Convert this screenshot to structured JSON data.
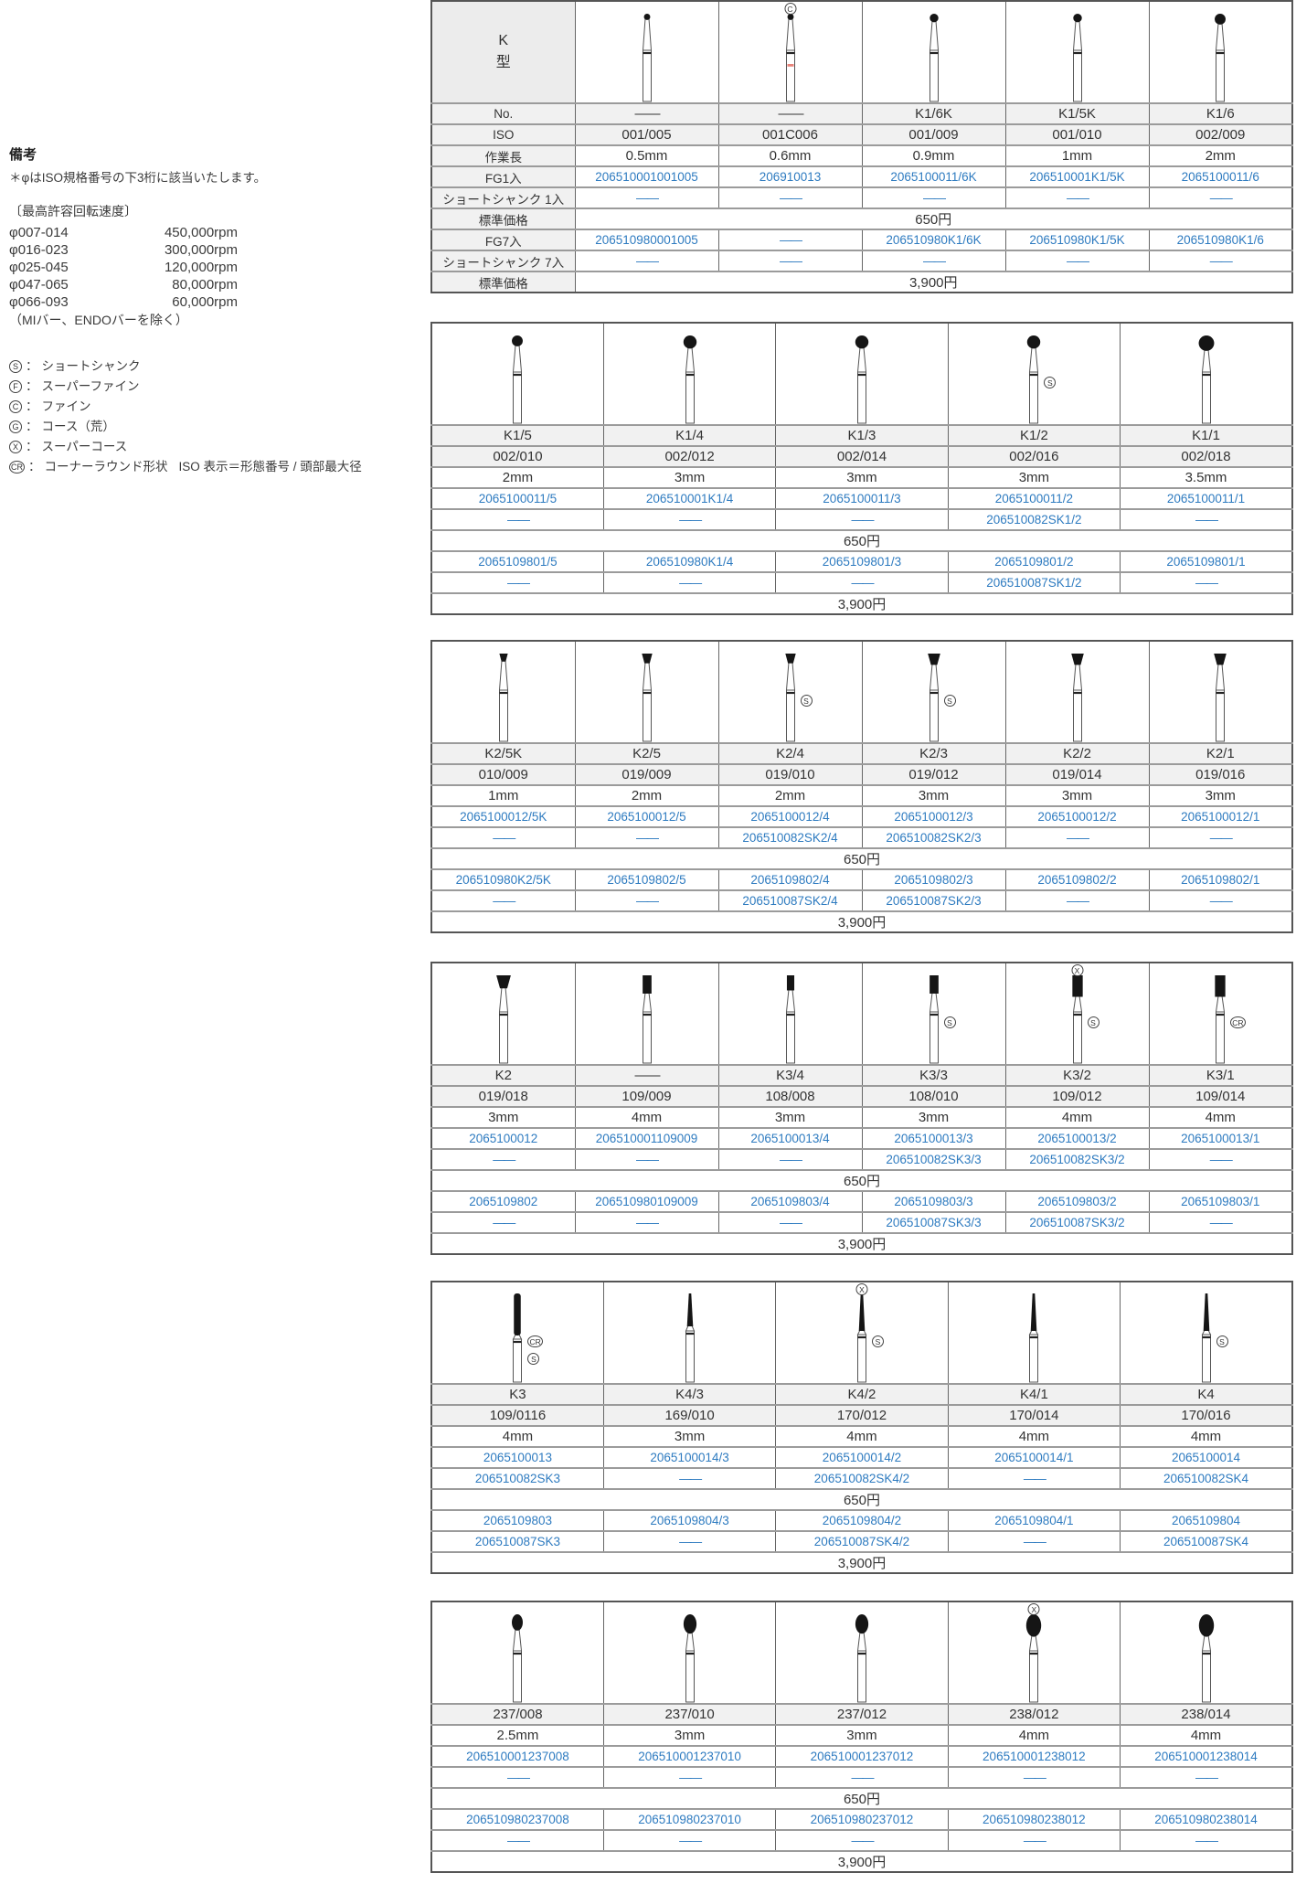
{
  "notes": {
    "heading": "備考",
    "iso_note": "＊φはISO規格番号の下3桁に該当いたします。",
    "speed_title": "〔最高許容回転速度〕",
    "speeds": [
      {
        "range": "φ007-014",
        "rpm": "450,000rpm"
      },
      {
        "range": "φ016-023",
        "rpm": "300,000rpm"
      },
      {
        "range": "φ025-045",
        "rpm": "120,000rpm"
      },
      {
        "range": "φ047-065",
        "rpm": "80,000rpm"
      },
      {
        "range": "φ066-093",
        "rpm": "60,000rpm"
      }
    ],
    "speed_exclusion": "（MIバー、ENDOバーを除く）",
    "legend": [
      {
        "sym": "S",
        "label": "ショートシャンク",
        "note": ""
      },
      {
        "sym": "F",
        "label": "スーパーファイン",
        "note": ""
      },
      {
        "sym": "C",
        "label": "ファイン",
        "note": ""
      },
      {
        "sym": "G",
        "label": "コース（荒）",
        "note": ""
      },
      {
        "sym": "X",
        "label": "スーパーコース",
        "note": ""
      },
      {
        "sym": "CR",
        "label": "コーナーラウンド形状",
        "note": "ISO 表示＝形態番号 / 頭部最大径"
      }
    ]
  },
  "row_labels": {
    "type_header_line1": "K",
    "type_header_line2": "型",
    "no": "No.",
    "iso": "ISO",
    "length": "作業長",
    "fg1": "FG1入",
    "ss1": "ショートシャンク 1入",
    "price": "標準価格",
    "fg7": "FG7入",
    "ss7": "ショートシャンク 7入"
  },
  "colors": {
    "link_blue": "#2e7bc0",
    "header_gray": "#f1f1f1",
    "border_dark": "#555555",
    "red_band": "#e8837a"
  },
  "tables": [
    {
      "name": "k-table-1",
      "has_label_col": true,
      "has_no_row": true,
      "price1": "650円",
      "price7": "3,900円",
      "columns": [
        {
          "no": "——",
          "iso": "001/005",
          "len": "0.5mm",
          "fg1": "206510001001005",
          "ss1": "——",
          "fg7": "206510980001005",
          "ss7": "——",
          "bur": {
            "shape": "ball",
            "size": 1
          }
        },
        {
          "no": "——",
          "iso": "001C006",
          "len": "0.6mm",
          "fg1": "206910013",
          "ss1": "——",
          "fg7": "——",
          "ss7": "——",
          "bur": {
            "shape": "ball",
            "size": 1,
            "above": "C",
            "red_band": true
          }
        },
        {
          "no": "K1/6K",
          "iso": "001/009",
          "len": "0.9mm",
          "fg1": "2065100011/6K",
          "ss1": "——",
          "fg7": "206510980K1/6K",
          "ss7": "——",
          "bur": {
            "shape": "ball",
            "size": 2
          }
        },
        {
          "no": "K1/5K",
          "iso": "001/010",
          "len": "1mm",
          "fg1": "206510001K1/5K",
          "ss1": "——",
          "fg7": "206510980K1/5K",
          "ss7": "——",
          "bur": {
            "shape": "ball",
            "size": 2
          }
        },
        {
          "no": "K1/6",
          "iso": "002/009",
          "len": "2mm",
          "fg1": "2065100011/6",
          "ss1": "——",
          "fg7": "206510980K1/6",
          "ss7": "——",
          "bur": {
            "shape": "ball",
            "size": 3
          }
        }
      ]
    },
    {
      "name": "k-table-2",
      "has_label_col": false,
      "has_no_row": true,
      "price1": "650円",
      "price7": "3,900円",
      "columns": [
        {
          "no": "K1/5",
          "iso": "002/010",
          "len": "2mm",
          "fg1": "2065100011/5",
          "ss1": "——",
          "fg7": "2065109801/5",
          "ss7": "——",
          "bur": {
            "shape": "ball",
            "size": 3
          }
        },
        {
          "no": "K1/4",
          "iso": "002/012",
          "len": "3mm",
          "fg1": "206510001K1/4",
          "ss1": "——",
          "fg7": "206510980K1/4",
          "ss7": "——",
          "bur": {
            "shape": "ball",
            "size": 4
          }
        },
        {
          "no": "K1/3",
          "iso": "002/014",
          "len": "3mm",
          "fg1": "2065100011/3",
          "ss1": "——",
          "fg7": "2065109801/3",
          "ss7": "——",
          "bur": {
            "shape": "ball",
            "size": 4
          }
        },
        {
          "no": "K1/2",
          "iso": "002/016",
          "len": "3mm",
          "fg1": "2065100011/2",
          "ss1": "206510082SK1/2",
          "fg7": "2065109801/2",
          "ss7": "206510087SK1/2",
          "bur": {
            "shape": "ball",
            "size": 4,
            "side": [
              "S"
            ]
          }
        },
        {
          "no": "K1/1",
          "iso": "002/018",
          "len": "3.5mm",
          "fg1": "2065100011/1",
          "ss1": "——",
          "fg7": "2065109801/1",
          "ss7": "——",
          "bur": {
            "shape": "ball",
            "size": 5
          }
        }
      ]
    },
    {
      "name": "k-table-3",
      "has_label_col": false,
      "has_no_row": true,
      "price1": "650円",
      "price7": "3,900円",
      "columns": [
        {
          "no": "K2/5K",
          "iso": "010/009",
          "len": "1mm",
          "fg1": "2065100012/5K",
          "ss1": "——",
          "fg7": "206510980K2/5K",
          "ss7": "——",
          "bur": {
            "shape": "invcone",
            "size": 1
          }
        },
        {
          "no": "K2/5",
          "iso": "019/009",
          "len": "2mm",
          "fg1": "2065100012/5",
          "ss1": "——",
          "fg7": "2065109802/5",
          "ss7": "——",
          "bur": {
            "shape": "invcone",
            "size": 2
          }
        },
        {
          "no": "K2/4",
          "iso": "019/010",
          "len": "2mm",
          "fg1": "2065100012/4",
          "ss1": "206510082SK2/4",
          "fg7": "2065109802/4",
          "ss7": "206510087SK2/4",
          "bur": {
            "shape": "invcone",
            "size": 2,
            "side": [
              "S"
            ]
          }
        },
        {
          "no": "K2/3",
          "iso": "019/012",
          "len": "3mm",
          "fg1": "2065100012/3",
          "ss1": "206510082SK2/3",
          "fg7": "2065109802/3",
          "ss7": "206510087SK2/3",
          "bur": {
            "shape": "invcone",
            "size": 3,
            "side": [
              "S"
            ]
          }
        },
        {
          "no": "K2/2",
          "iso": "019/014",
          "len": "3mm",
          "fg1": "2065100012/2",
          "ss1": "——",
          "fg7": "2065109802/2",
          "ss7": "——",
          "bur": {
            "shape": "invcone",
            "size": 3
          }
        },
        {
          "no": "K2/1",
          "iso": "019/016",
          "len": "3mm",
          "fg1": "2065100012/1",
          "ss1": "——",
          "fg7": "2065109802/1",
          "ss7": "——",
          "bur": {
            "shape": "invcone",
            "size": 3
          }
        }
      ]
    },
    {
      "name": "k-table-4",
      "has_label_col": false,
      "has_no_row": true,
      "price1": "650円",
      "price7": "3,900円",
      "columns": [
        {
          "no": "K2",
          "iso": "019/018",
          "len": "3mm",
          "fg1": "2065100012",
          "ss1": "——",
          "fg7": "2065109802",
          "ss7": "——",
          "bur": {
            "shape": "invcone",
            "size": 4
          }
        },
        {
          "no": "——",
          "iso": "109/009",
          "len": "4mm",
          "fg1": "206510001109009",
          "ss1": "——",
          "fg7": "206510980109009",
          "ss7": "——",
          "bur": {
            "shape": "cylinder",
            "size": 2
          }
        },
        {
          "no": "K3/4",
          "iso": "108/008",
          "len": "3mm",
          "fg1": "2065100013/4",
          "ss1": "——",
          "fg7": "2065109803/4",
          "ss7": "——",
          "bur": {
            "shape": "cylinder",
            "size": 1
          }
        },
        {
          "no": "K3/3",
          "iso": "108/010",
          "len": "3mm",
          "fg1": "2065100013/3",
          "ss1": "206510082SK3/3",
          "fg7": "2065109803/3",
          "ss7": "206510087SK3/3",
          "bur": {
            "shape": "cylinder",
            "size": 2,
            "side": [
              "S"
            ]
          }
        },
        {
          "no": "K3/2",
          "iso": "109/012",
          "len": "4mm",
          "fg1": "2065100013/2",
          "ss1": "206510082SK3/2",
          "fg7": "2065109803/2",
          "ss7": "206510087SK3/2",
          "bur": {
            "shape": "cylinder",
            "size": 3,
            "above": "X",
            "side": [
              "S"
            ]
          }
        },
        {
          "no": "K3/1",
          "iso": "109/014",
          "len": "4mm",
          "fg1": "2065100013/1",
          "ss1": "——",
          "fg7": "2065109803/1",
          "ss7": "——",
          "bur": {
            "shape": "cylinder",
            "size": 3,
            "side": [
              "CR"
            ]
          }
        }
      ]
    },
    {
      "name": "k-table-5",
      "has_label_col": false,
      "has_no_row": true,
      "price1": "650円",
      "price7": "3,900円",
      "columns": [
        {
          "no": "K3",
          "iso": "109/0116",
          "len": "4mm",
          "fg1": "2065100013",
          "ss1": "206510082SK3",
          "fg7": "2065109803",
          "ss7": "206510087SK3",
          "bur": {
            "shape": "rod",
            "size": 4,
            "side": [
              "CR",
              "S"
            ]
          }
        },
        {
          "no": "K4/3",
          "iso": "169/010",
          "len": "3mm",
          "fg1": "2065100014/3",
          "ss1": "——",
          "fg7": "2065109804/3",
          "ss7": "——",
          "bur": {
            "shape": "taper",
            "size": 2
          }
        },
        {
          "no": "K4/2",
          "iso": "170/012",
          "len": "4mm",
          "fg1": "2065100014/2",
          "ss1": "206510082SK4/2",
          "fg7": "2065109804/2",
          "ss7": "206510087SK4/2",
          "bur": {
            "shape": "taper",
            "size": 3,
            "above": "X",
            "side": [
              "S"
            ]
          }
        },
        {
          "no": "K4/1",
          "iso": "170/014",
          "len": "4mm",
          "fg1": "2065100014/1",
          "ss1": "——",
          "fg7": "2065109804/1",
          "ss7": "——",
          "bur": {
            "shape": "taper",
            "size": 3
          }
        },
        {
          "no": "K4",
          "iso": "170/016",
          "len": "4mm",
          "fg1": "2065100014",
          "ss1": "206510082SK4",
          "fg7": "2065109804",
          "ss7": "206510087SK4",
          "bur": {
            "shape": "taper",
            "size": 3,
            "side": [
              "S"
            ]
          }
        }
      ]
    },
    {
      "name": "k-table-6",
      "has_label_col": false,
      "has_no_row": false,
      "price1": "650円",
      "price7": "3,900円",
      "columns": [
        {
          "iso": "237/008",
          "len": "2.5mm",
          "fg1": "206510001237008",
          "ss1": "——",
          "fg7": "206510980237008",
          "ss7": "——",
          "bur": {
            "shape": "pear",
            "size": 2
          }
        },
        {
          "iso": "237/010",
          "len": "3mm",
          "fg1": "206510001237010",
          "ss1": "——",
          "fg7": "206510980237010",
          "ss7": "——",
          "bur": {
            "shape": "pear",
            "size": 3
          }
        },
        {
          "iso": "237/012",
          "len": "3mm",
          "fg1": "206510001237012",
          "ss1": "——",
          "fg7": "206510980237012",
          "ss7": "——",
          "bur": {
            "shape": "pear",
            "size": 3
          }
        },
        {
          "iso": "238/012",
          "len": "4mm",
          "fg1": "206510001238012",
          "ss1": "——",
          "fg7": "206510980238012",
          "ss7": "——",
          "bur": {
            "shape": "pear",
            "size": 4,
            "above": "X"
          }
        },
        {
          "iso": "238/014",
          "len": "4mm",
          "fg1": "206510001238014",
          "ss1": "——",
          "fg7": "206510980238014",
          "ss7": "——",
          "bur": {
            "shape": "pear",
            "size": 4
          }
        }
      ]
    }
  ]
}
